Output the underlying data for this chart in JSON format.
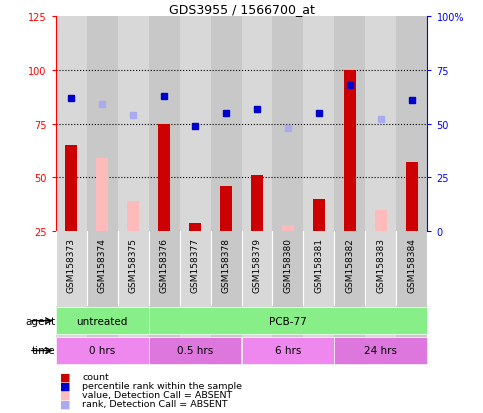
{
  "title": "GDS3955 / 1566700_at",
  "samples": [
    "GSM158373",
    "GSM158374",
    "GSM158375",
    "GSM158376",
    "GSM158377",
    "GSM158378",
    "GSM158379",
    "GSM158380",
    "GSM158381",
    "GSM158382",
    "GSM158383",
    "GSM158384"
  ],
  "count_present": [
    65,
    null,
    null,
    75,
    29,
    46,
    51,
    null,
    40,
    100,
    null,
    57
  ],
  "count_absent": [
    null,
    59,
    39,
    null,
    null,
    null,
    null,
    28,
    null,
    null,
    35,
    null
  ],
  "rank_present": [
    87,
    null,
    null,
    88,
    74,
    80,
    82,
    null,
    80,
    93,
    null,
    86
  ],
  "rank_absent": [
    null,
    84,
    79,
    null,
    null,
    null,
    null,
    73,
    null,
    null,
    77,
    null
  ],
  "left_ylim": [
    25,
    125
  ],
  "left_yticks": [
    25,
    50,
    75,
    100,
    125
  ],
  "right_yticks": [
    25,
    50,
    75,
    100,
    125
  ],
  "right_yticklabels": [
    "0",
    "25",
    "50",
    "75",
    "100%"
  ],
  "dotted_lines": [
    50,
    75,
    100
  ],
  "bar_color_present": "#cc0000",
  "bar_color_absent": "#ffbbbb",
  "rank_color_present": "#0000cc",
  "rank_color_absent": "#aaaaee",
  "col_bg_colors": [
    "#d8d8d8",
    "#c8c8c8"
  ],
  "agent_entries": [
    {
      "label": "untreated",
      "start": 0,
      "end": 3,
      "color": "#88ee88"
    },
    {
      "label": "PCB-77",
      "start": 3,
      "end": 12,
      "color": "#88ee88"
    }
  ],
  "time_entries": [
    {
      "label": "0 hrs",
      "start": 0,
      "end": 3,
      "color": "#ee88ee"
    },
    {
      "label": "0.5 hrs",
      "start": 3,
      "end": 6,
      "color": "#dd77dd"
    },
    {
      "label": "6 hrs",
      "start": 6,
      "end": 9,
      "color": "#ee88ee"
    },
    {
      "label": "24 hrs",
      "start": 9,
      "end": 12,
      "color": "#dd77dd"
    }
  ],
  "legend_items": [
    {
      "color": "#cc0000",
      "label": "count"
    },
    {
      "color": "#0000cc",
      "label": "percentile rank within the sample"
    },
    {
      "color": "#ffbbbb",
      "label": "value, Detection Call = ABSENT"
    },
    {
      "color": "#aaaaee",
      "label": "rank, Detection Call = ABSENT"
    }
  ],
  "n_samples": 12,
  "bar_width": 0.4
}
